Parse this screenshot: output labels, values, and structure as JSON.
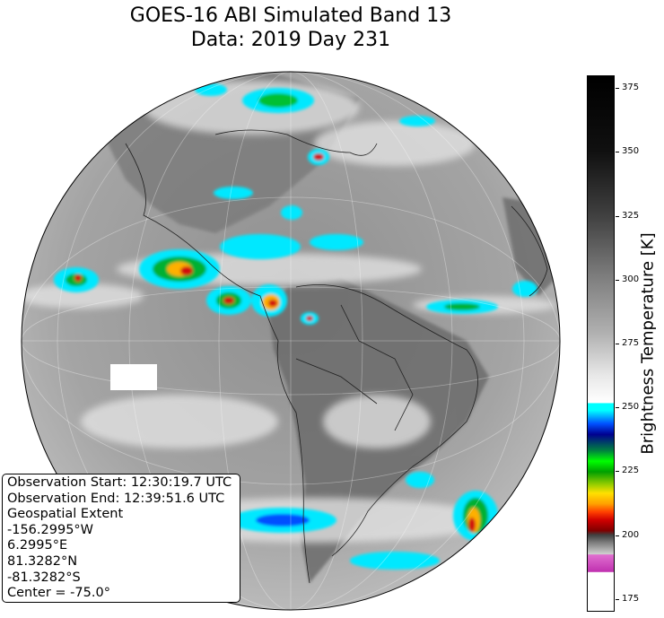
{
  "title": {
    "line1": "GOES-16 ABI Simulated Band 13",
    "line2": "Data: 2019 Day 231"
  },
  "colorbar": {
    "label": "Brightness Temperature [K]",
    "ticks": [
      {
        "value": 175,
        "label": "175"
      },
      {
        "value": 200,
        "label": "200"
      },
      {
        "value": 225,
        "label": "225"
      },
      {
        "value": 250,
        "label": "250"
      },
      {
        "value": 275,
        "label": "275"
      },
      {
        "value": 300,
        "label": "300"
      },
      {
        "value": 325,
        "label": "325"
      },
      {
        "value": 350,
        "label": "350"
      },
      {
        "value": 375,
        "label": "375"
      }
    ],
    "range": [
      170,
      380
    ]
  },
  "info_box": {
    "obs_start": "Observation Start: 12:30:19.7 UTC",
    "obs_end": "Observation End: 12:39:51.6 UTC",
    "extent_label": "Geospatial Extent",
    "west": "-156.2995°W",
    "east": "6.2995°E",
    "north": "81.3282°N",
    "south": "-81.3282°S",
    "center": "Center = -75.0°"
  },
  "map": {
    "projection": "geostationary",
    "central_longitude": -75.0,
    "colors": {
      "ocean_gray": "#9a9a9a",
      "cold_cloud_cyan": "#00e8ff",
      "deep_convection_red": "#d01010"
    }
  }
}
